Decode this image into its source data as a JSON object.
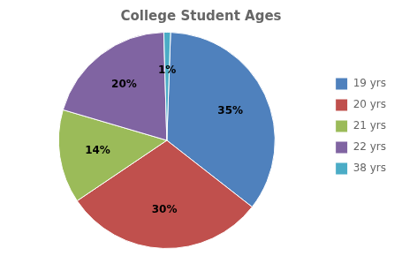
{
  "chart_data": {
    "type": "pie",
    "title": "College Student Ages",
    "categories": [
      "19 yrs",
      "20 yrs",
      "21 yrs",
      "22 yrs",
      "38 yrs"
    ],
    "values": [
      35,
      30,
      14,
      20,
      1
    ],
    "value_labels": [
      "35%",
      "30%",
      "14%",
      "20%",
      "1%"
    ],
    "colors": [
      "#4F81BD",
      "#C0504D",
      "#9BBB59",
      "#8064A2",
      "#4BACC6"
    ],
    "data_labels": true,
    "legend": "right"
  }
}
